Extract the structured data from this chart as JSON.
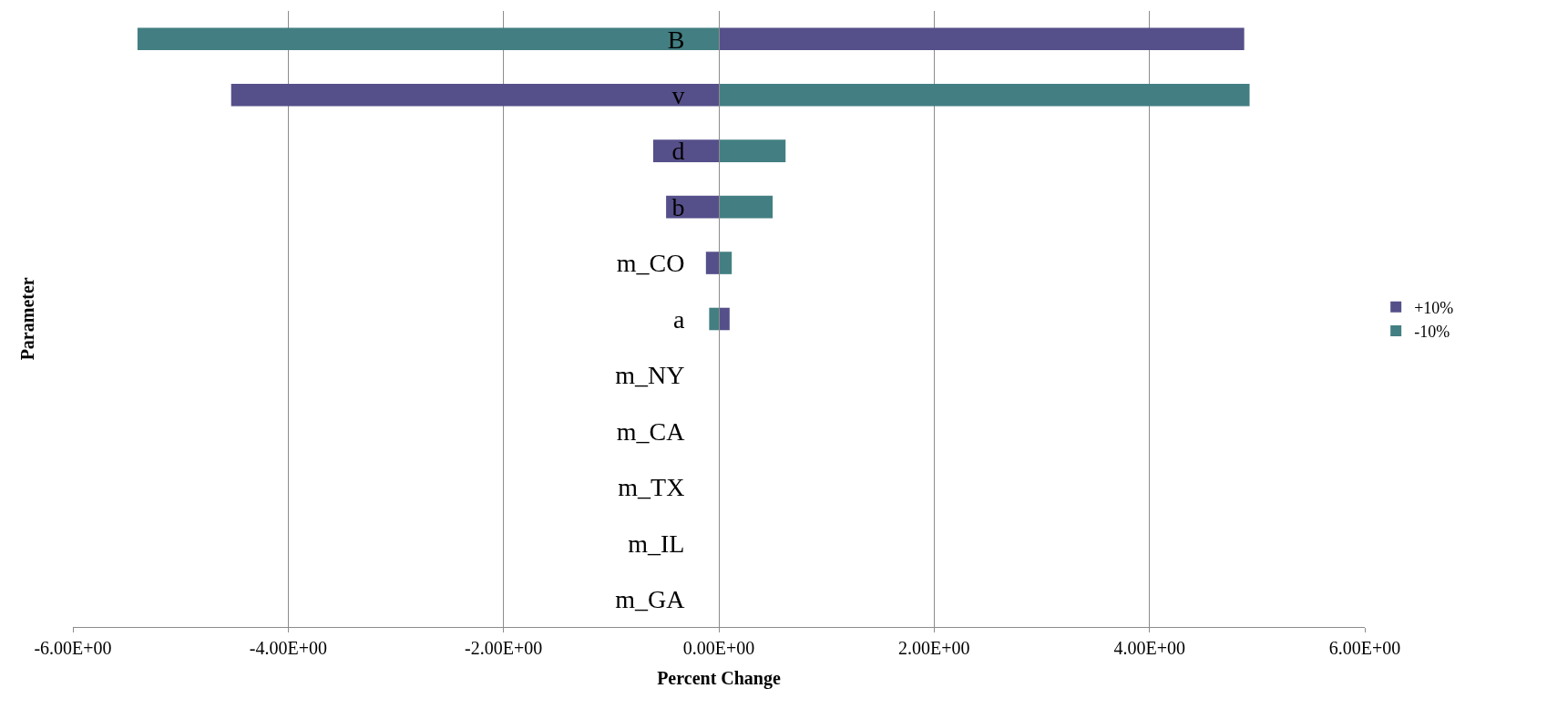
{
  "chart_data": {
    "type": "bar",
    "orientation": "horizontal",
    "xlabel": "Percent Change",
    "ylabel": "Parameter",
    "categories": [
      "B",
      "v",
      "d",
      "b",
      "m_CO",
      "a",
      "m_NY",
      "m_CA",
      "m_TX",
      "m_IL",
      "m_GA"
    ],
    "series": [
      {
        "name": "+10%",
        "color": "#55508a",
        "values": [
          4.88,
          -4.53,
          -0.61,
          -0.49,
          -0.12,
          0.1,
          0,
          0,
          0,
          0,
          0
        ]
      },
      {
        "name": "-10%",
        "color": "#437f82",
        "values": [
          -5.4,
          4.93,
          0.62,
          0.5,
          0.12,
          -0.09,
          0,
          0,
          0,
          0,
          0
        ]
      }
    ],
    "xlim": [
      -6,
      6
    ],
    "xticks": [
      {
        "value": -6,
        "label": "-6.00E+00"
      },
      {
        "value": -4,
        "label": "-4.00E+00"
      },
      {
        "value": -2,
        "label": "-2.00E+00"
      },
      {
        "value": 0,
        "label": "0.00E+00"
      },
      {
        "value": 2,
        "label": "2.00E+00"
      },
      {
        "value": 4,
        "label": "4.00E+00"
      },
      {
        "value": 6,
        "label": "6.00E+00"
      }
    ],
    "grid": "x",
    "legend": "right",
    "stacked": true
  }
}
